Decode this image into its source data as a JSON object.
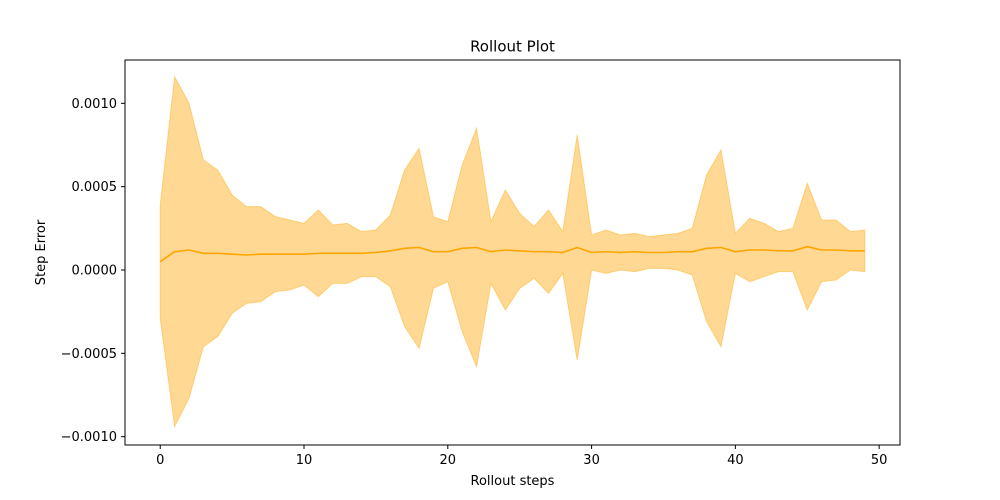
{
  "chart_data": {
    "type": "line",
    "title": "Rollout Plot",
    "xlabel": "Rollout steps",
    "ylabel": "Step Error",
    "xlim": [
      -2.45,
      51.45
    ],
    "ylim": [
      -0.00105,
      0.00126
    ],
    "grid": false,
    "x_ticks": [
      {
        "value": 0,
        "label": "0"
      },
      {
        "value": 10,
        "label": "10"
      },
      {
        "value": 20,
        "label": "20"
      },
      {
        "value": 30,
        "label": "30"
      },
      {
        "value": 40,
        "label": "40"
      },
      {
        "value": 50,
        "label": "50"
      }
    ],
    "y_ticks": [
      {
        "value": -0.001,
        "label": "−0.0010"
      },
      {
        "value": -0.0005,
        "label": "−0.0005"
      },
      {
        "value": 0.0,
        "label": "0.0000"
      },
      {
        "value": 0.0005,
        "label": "0.0005"
      },
      {
        "value": 0.001,
        "label": "0.0010"
      }
    ],
    "series": [
      {
        "color": "#ffa500",
        "band_color": "#ffa500",
        "band_opacity": 0.42,
        "x": [
          0,
          1,
          2,
          3,
          4,
          5,
          6,
          7,
          8,
          9,
          10,
          11,
          12,
          13,
          14,
          15,
          16,
          17,
          18,
          19,
          20,
          21,
          22,
          23,
          24,
          25,
          26,
          27,
          28,
          29,
          30,
          31,
          32,
          33,
          34,
          35,
          36,
          37,
          38,
          39,
          40,
          41,
          42,
          43,
          44,
          45,
          46,
          47,
          48,
          49
        ],
        "mean": [
          5e-05,
          0.00011,
          0.00012,
          0.0001,
          0.0001,
          9.5e-05,
          9e-05,
          9.5e-05,
          9.5e-05,
          9.5e-05,
          9.5e-05,
          0.0001,
          0.0001,
          0.0001,
          0.0001,
          0.000105,
          0.000115,
          0.00013,
          0.000135,
          0.00011,
          0.00011,
          0.00013,
          0.000135,
          0.00011,
          0.00012,
          0.000115,
          0.00011,
          0.00011,
          0.000105,
          0.000135,
          0.000105,
          0.00011,
          0.000105,
          0.00011,
          0.000105,
          0.000105,
          0.00011,
          0.00011,
          0.00013,
          0.000135,
          0.00011,
          0.00012,
          0.00012,
          0.000115,
          0.000115,
          0.00014,
          0.00012,
          0.00012,
          0.000115,
          0.000115
        ],
        "upper": [
          0.00039,
          0.00116,
          0.001,
          0.00066,
          0.0006,
          0.00045,
          0.00038,
          0.00038,
          0.00032,
          0.0003,
          0.00028,
          0.00036,
          0.00027,
          0.00028,
          0.00023,
          0.00024,
          0.00033,
          0.0006,
          0.00073,
          0.00032,
          0.00029,
          0.00063,
          0.00085,
          0.00029,
          0.00048,
          0.00034,
          0.00026,
          0.00036,
          0.00023,
          0.00081,
          0.00021,
          0.00024,
          0.00021,
          0.00022,
          0.0002,
          0.00021,
          0.00022,
          0.00025,
          0.00057,
          0.00072,
          0.00022,
          0.00031,
          0.00028,
          0.00023,
          0.00025,
          0.00052,
          0.0003,
          0.0003,
          0.00023,
          0.00024
        ],
        "lower": [
          -0.00029,
          -0.00094,
          -0.00077,
          -0.00046,
          -0.0004,
          -0.00026,
          -0.0002,
          -0.00019,
          -0.00013,
          -0.00012,
          -9e-05,
          -0.00016,
          -8e-05,
          -8e-05,
          -4e-05,
          -4e-05,
          -0.0001,
          -0.00034,
          -0.00047,
          -0.00011,
          -7e-05,
          -0.00037,
          -0.00058,
          -8e-05,
          -0.00024,
          -0.00011,
          -5e-05,
          -0.00014,
          -2e-05,
          -0.00054,
          0.0,
          -2e-05,
          0.0,
          -1e-05,
          1e-05,
          1e-05,
          0.0,
          -3e-05,
          -0.00031,
          -0.00046,
          -2e-05,
          -7e-05,
          -4e-05,
          -1e-05,
          -1e-05,
          -0.00024,
          -7e-05,
          -6e-05,
          0.0,
          -1e-05
        ]
      }
    ]
  }
}
